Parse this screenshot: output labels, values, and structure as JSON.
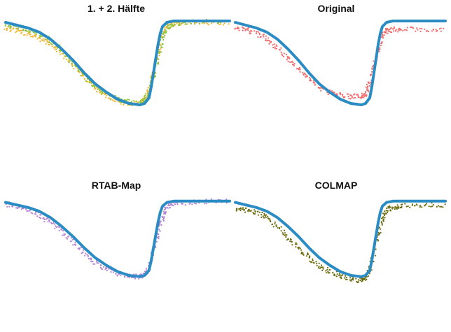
{
  "chart_data": [
    {
      "type": "scatter",
      "title": "1. + 2. Hälfte",
      "xlim": [
        0,
        100
      ],
      "ylim": [
        0,
        100
      ],
      "series": [
        {
          "color": "#2b8cc4",
          "role": "reference",
          "x": [
            0,
            5,
            10,
            15,
            20,
            25,
            30,
            35,
            40,
            45,
            50,
            55,
            60,
            62,
            64,
            65,
            66,
            67,
            68,
            69,
            70,
            72,
            75,
            80,
            85,
            90,
            95,
            100
          ],
          "y": [
            98,
            96,
            94,
            91,
            86,
            79,
            71,
            62,
            54,
            48,
            43,
            40,
            39,
            40,
            44,
            52,
            62,
            72,
            82,
            90,
            95,
            98,
            99,
            99,
            99,
            99,
            99,
            99
          ]
        },
        {
          "color": "#f5b731",
          "x": [
            0,
            5,
            10,
            15,
            20,
            25,
            30,
            35,
            40,
            45,
            50,
            55,
            60,
            62,
            64,
            66,
            68,
            70,
            72,
            75,
            80,
            90,
            100
          ],
          "y": [
            94,
            92,
            90,
            87,
            82,
            76,
            68,
            59,
            51,
            46,
            42,
            40,
            40,
            43,
            50,
            62,
            76,
            88,
            95,
            97,
            98,
            98,
            98
          ]
        },
        {
          "color": "#8cc63f",
          "x": [
            0,
            5,
            10,
            15,
            20,
            25,
            30,
            35,
            40,
            45,
            50,
            55,
            60,
            62,
            64,
            66,
            68,
            70,
            72,
            75,
            80,
            90,
            100
          ],
          "y": [
            96,
            95,
            93,
            90,
            85,
            78,
            69,
            60,
            52,
            47,
            43,
            41,
            40,
            42,
            48,
            60,
            74,
            87,
            94,
            97,
            98,
            99,
            99
          ]
        }
      ]
    },
    {
      "type": "scatter",
      "title": "Original",
      "xlim": [
        0,
        100
      ],
      "ylim": [
        0,
        100
      ],
      "series": [
        {
          "color": "#2b8cc4",
          "role": "reference",
          "x": [
            0,
            5,
            10,
            15,
            20,
            25,
            30,
            35,
            40,
            45,
            50,
            55,
            60,
            62,
            64,
            65,
            66,
            67,
            68,
            69,
            70,
            72,
            75,
            80,
            85,
            90,
            95,
            100
          ],
          "y": [
            98,
            96,
            94,
            91,
            86,
            79,
            71,
            62,
            54,
            48,
            43,
            40,
            39,
            40,
            44,
            52,
            62,
            72,
            82,
            90,
            95,
            98,
            99,
            99,
            99,
            99,
            99,
            99
          ]
        },
        {
          "color": "#f06b6b",
          "x": [
            0,
            5,
            10,
            15,
            20,
            25,
            30,
            35,
            40,
            45,
            50,
            55,
            60,
            62,
            64,
            66,
            68,
            70,
            72,
            75,
            80,
            90,
            100
          ],
          "y": [
            94,
            93,
            90,
            86,
            80,
            73,
            65,
            58,
            52,
            48,
            46,
            45,
            45,
            47,
            55,
            66,
            78,
            88,
            92,
            93,
            93,
            93,
            93
          ]
        }
      ]
    },
    {
      "type": "scatter",
      "title": "RTAB-Map",
      "xlim": [
        0,
        100
      ],
      "ylim": [
        0,
        100
      ],
      "series": [
        {
          "color": "#2b8cc4",
          "role": "reference",
          "x": [
            0,
            5,
            10,
            15,
            20,
            25,
            30,
            35,
            40,
            45,
            50,
            55,
            60,
            62,
            64,
            65,
            66,
            67,
            68,
            69,
            70,
            72,
            75,
            80,
            85,
            90,
            95,
            100
          ],
          "y": [
            98,
            96,
            94,
            91,
            86,
            79,
            71,
            62,
            54,
            48,
            43,
            40,
            39,
            40,
            44,
            52,
            62,
            72,
            82,
            90,
            95,
            98,
            99,
            99,
            99,
            99,
            99,
            99
          ]
        },
        {
          "color": "#b484d6",
          "x": [
            0,
            5,
            10,
            15,
            20,
            25,
            30,
            35,
            40,
            45,
            50,
            55,
            60,
            62,
            64,
            66,
            68,
            70,
            72,
            75,
            80,
            90,
            100
          ],
          "y": [
            97,
            95,
            92,
            88,
            82,
            75,
            67,
            58,
            50,
            45,
            41,
            39,
            39,
            41,
            47,
            59,
            73,
            86,
            94,
            97,
            98,
            99,
            99
          ]
        }
      ]
    },
    {
      "type": "scatter",
      "title": "COLMAP",
      "xlim": [
        0,
        100
      ],
      "ylim": [
        0,
        100
      ],
      "series": [
        {
          "color": "#2b8cc4",
          "role": "reference",
          "x": [
            0,
            5,
            10,
            15,
            20,
            25,
            30,
            35,
            40,
            45,
            50,
            55,
            60,
            62,
            64,
            65,
            66,
            67,
            68,
            69,
            70,
            72,
            75,
            80,
            85,
            90,
            95,
            100
          ],
          "y": [
            98,
            96,
            94,
            91,
            86,
            79,
            71,
            62,
            54,
            48,
            43,
            40,
            39,
            40,
            44,
            52,
            62,
            72,
            82,
            90,
            95,
            98,
            99,
            99,
            99,
            99,
            99,
            99
          ]
        },
        {
          "color": "#6b6b0c",
          "x": [
            0,
            5,
            10,
            15,
            20,
            25,
            30,
            35,
            40,
            45,
            50,
            55,
            60,
            62,
            64,
            66,
            68,
            70,
            72,
            75,
            80,
            90,
            100
          ],
          "y": [
            93,
            92,
            90,
            86,
            79,
            70,
            62,
            54,
            47,
            43,
            40,
            37,
            36,
            38,
            45,
            57,
            72,
            85,
            92,
            94,
            95,
            96,
            96
          ]
        }
      ]
    }
  ]
}
